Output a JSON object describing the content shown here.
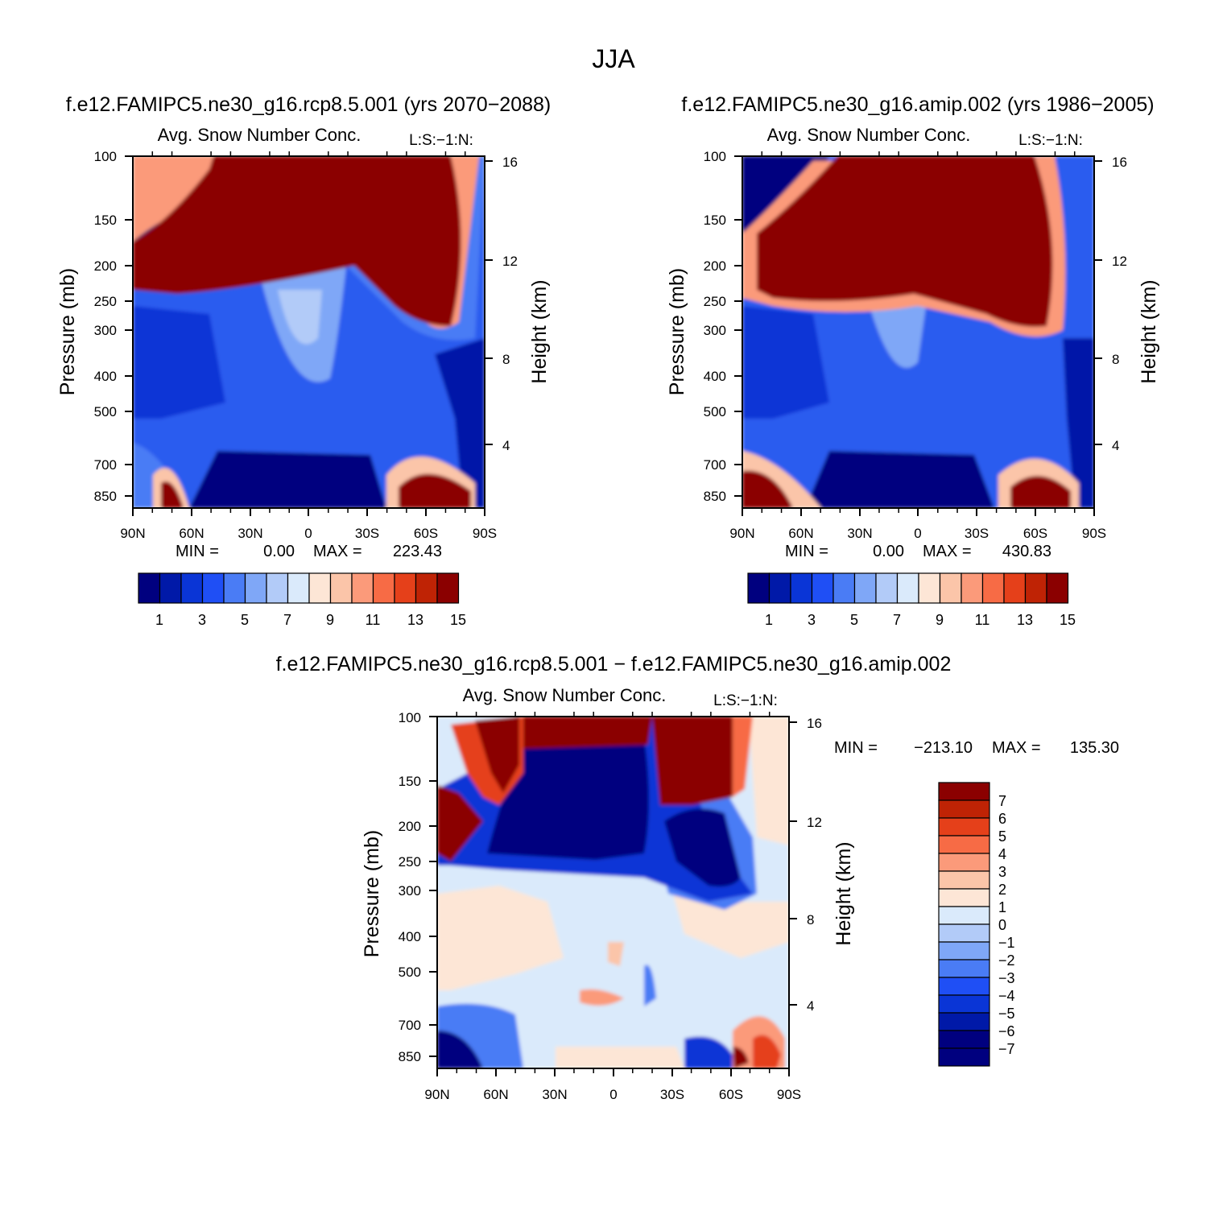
{
  "page_title": "JJA",
  "chart_data": [
    {
      "type": "heatmap",
      "id": "panel_a",
      "header": "f.e12.FAMIPC5.ne30_g16.rcp8.5.001 (yrs 2070-2088)",
      "title": "Avg. Snow Number Conc.",
      "subtitle": "L:S:-1:N:",
      "xlabel": "",
      "ylabel": "Pressure (mb)",
      "ylabel_right": "Height (km)",
      "x_ticks": [
        "90N",
        "60N",
        "30N",
        "0",
        "30S",
        "60S",
        "90S"
      ],
      "y_ticks": [
        100,
        150,
        200,
        250,
        300,
        400,
        500,
        700,
        850
      ],
      "height_ticks": [
        4,
        8,
        12,
        16
      ],
      "ylim": [
        100,
        1000
      ],
      "stats": {
        "min_label": "MIN =",
        "min": "0.00",
        "max_label": "MAX =",
        "max": "223.43"
      },
      "colorbar": {
        "orientation": "horizontal",
        "labels": [
          "1",
          "3",
          "5",
          "7",
          "9",
          "11",
          "13",
          "15"
        ]
      }
    },
    {
      "type": "heatmap",
      "id": "panel_b",
      "header": "f.e12.FAMIPC5.ne30_g16.amip.002 (yrs 1986-2005)",
      "title": "Avg. Snow Number Conc.",
      "subtitle": "L:S:-1:N:",
      "xlabel": "",
      "ylabel": "Pressure (mb)",
      "ylabel_right": "Height (km)",
      "x_ticks": [
        "90N",
        "60N",
        "30N",
        "0",
        "30S",
        "60S",
        "90S"
      ],
      "y_ticks": [
        100,
        150,
        200,
        250,
        300,
        400,
        500,
        700,
        850
      ],
      "height_ticks": [
        4,
        8,
        12,
        16
      ],
      "ylim": [
        100,
        1000
      ],
      "stats": {
        "min_label": "MIN =",
        "min": "0.00",
        "max_label": "MAX =",
        "max": "430.83"
      },
      "colorbar": {
        "orientation": "horizontal",
        "labels": [
          "1",
          "3",
          "5",
          "7",
          "9",
          "11",
          "13",
          "15"
        ]
      }
    },
    {
      "type": "heatmap",
      "id": "panel_c",
      "header": "f.e12.FAMIPC5.ne30_g16.rcp8.5.001 - f.e12.FAMIPC5.ne30_g16.amip.002",
      "title": "Avg. Snow Number Conc.",
      "subtitle": "L:S:-1:N:",
      "xlabel": "",
      "ylabel": "Pressure (mb)",
      "ylabel_right": "Height (km)",
      "x_ticks": [
        "90N",
        "60N",
        "30N",
        "0",
        "30S",
        "60S",
        "90S"
      ],
      "y_ticks": [
        100,
        150,
        200,
        250,
        300,
        400,
        500,
        700,
        850
      ],
      "height_ticks": [
        4,
        8,
        12,
        16
      ],
      "ylim": [
        100,
        1000
      ],
      "stats": {
        "min_label": "MIN =",
        "min": "-213.10",
        "max_label": "MAX =",
        "max": "135.30"
      },
      "colorbar": {
        "orientation": "vertical",
        "labels": [
          "7",
          "6",
          "5",
          "4",
          "3",
          "2",
          "1",
          "0",
          "-1",
          "-2",
          "-3",
          "-4",
          "-5",
          "-6",
          "-7"
        ]
      }
    }
  ],
  "palette": [
    "#00007f",
    "#0019a8",
    "#0a35d6",
    "#1f4ff5",
    "#4a7cf5",
    "#7fa7f7",
    "#b2cbf8",
    "#daeafb",
    "#fde6d6",
    "#fbc5a9",
    "#fb9a7a",
    "#f76b45",
    "#e5401a",
    "#bf2305",
    "#8b0000"
  ]
}
